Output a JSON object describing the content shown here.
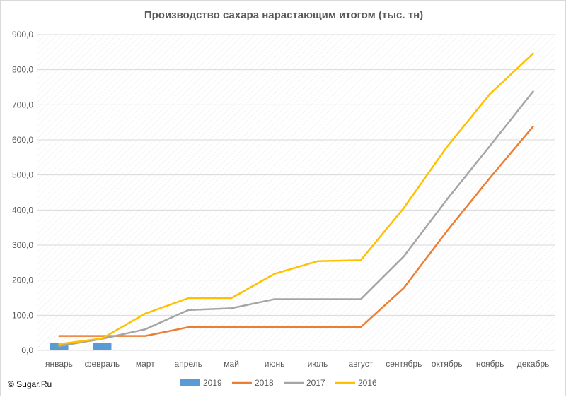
{
  "chart_data": {
    "type": "bar+line",
    "title": "Производство сахара нарастающим итогом (тыс. тн)",
    "categories": [
      "январь",
      "февраль",
      "март",
      "апрель",
      "май",
      "июнь",
      "июль",
      "август",
      "сентябрь",
      "октябрь",
      "ноябрь",
      "декабрь"
    ],
    "ylim": [
      0,
      900
    ],
    "yticks": [
      "0,0",
      "100,0",
      "200,0",
      "300,0",
      "400,0",
      "500,0",
      "600,0",
      "700,0",
      "800,0",
      "900,0"
    ],
    "grid": true,
    "legend_position": "bottom",
    "series": [
      {
        "name": "2019",
        "kind": "bar",
        "color": "#5b9bd5",
        "values": [
          22,
          22,
          null,
          null,
          null,
          null,
          null,
          null,
          null,
          null,
          null,
          null
        ]
      },
      {
        "name": "2018",
        "kind": "line",
        "color": "#ed7d31",
        "values": [
          41,
          41,
          41,
          66,
          66,
          66,
          66,
          66,
          178,
          340,
          492,
          638
        ]
      },
      {
        "name": "2017",
        "kind": "line",
        "color": "#a5a5a5",
        "values": [
          12,
          33,
          60,
          115,
          120,
          146,
          146,
          146,
          268,
          430,
          583,
          738
        ]
      },
      {
        "name": "2016",
        "kind": "line",
        "color": "#ffc000",
        "values": [
          18,
          34,
          105,
          149,
          149,
          218,
          254,
          257,
          406,
          580,
          731,
          846
        ]
      }
    ]
  },
  "copyright": "© Sugar.Ru"
}
